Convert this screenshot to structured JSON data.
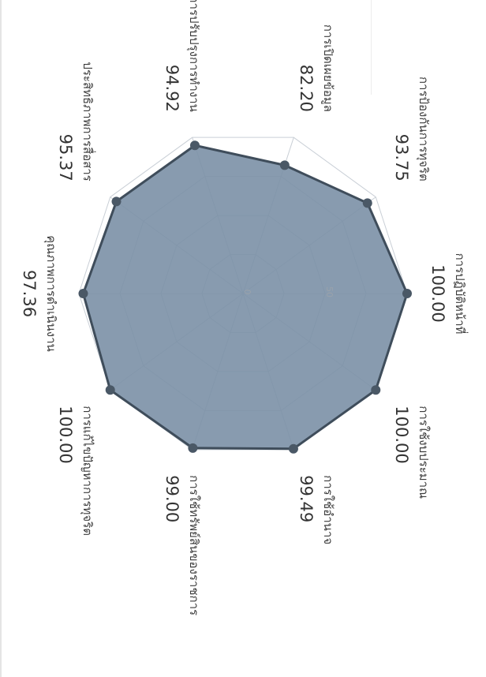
{
  "chart_data": {
    "type": "radar",
    "categories": [
      "การปฏิบัติหน้าที่",
      "การใช้งบประมาณ",
      "การใช้อำนาจ",
      "การใช้ทรัพย์สินของราชการ",
      "การแก้ไขปัญหาการทุจริต",
      "คุณภาพการดำเนินงาน",
      "ประสิทธิภาพการสื่อสาร",
      "การปรับปรุงการทำงาน",
      "การเปิดเผยข้อมูล",
      "การป้องกันการทุจริต"
    ],
    "values": [
      100.0,
      100.0,
      99.49,
      99.0,
      100.0,
      97.36,
      95.37,
      94.92,
      82.2,
      93.75
    ],
    "value_labels": [
      "100.00",
      "100.00",
      "99.49",
      "99.00",
      "100.00",
      "97.36",
      "95.37",
      "94.92",
      "82.20",
      "93.75"
    ],
    "range": [
      0,
      100
    ],
    "ring_labels": [
      "0",
      "50"
    ],
    "grid": true,
    "colors": {
      "fill": "#7b90a6",
      "stroke": "#3f4d5b",
      "point": "#4a5866",
      "grid": "#c9cfd6"
    }
  }
}
